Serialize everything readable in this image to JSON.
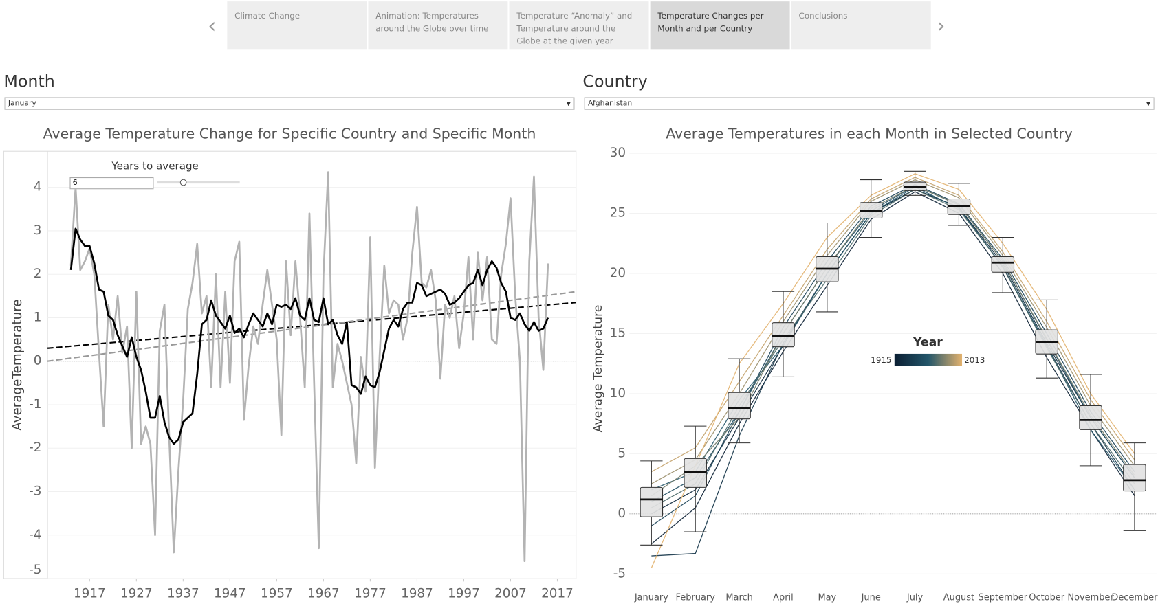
{
  "tabs": [
    "Climate Change",
    "Animation: Temperatures around the Globe over time",
    "Temperature “Anomaly” and Temperature around the Globe at the given year",
    "Temperature Changes per Month and per Country",
    "Conclusions"
  ],
  "selected_tab": 3,
  "filters": [
    {
      "label": "Month",
      "value": "January"
    },
    {
      "label": "Country",
      "value": "Afghanistan"
    }
  ],
  "chart_data": [
    {
      "type": "line",
      "title": "Average Temperature Change for Specific Country and Specific Month",
      "y_label": "AverageTemperature",
      "control": {
        "label": "Years to average",
        "value": 6
      },
      "x": [
        1913,
        1914,
        1915,
        1916,
        1917,
        1918,
        1919,
        1920,
        1921,
        1922,
        1923,
        1924,
        1925,
        1926,
        1927,
        1928,
        1929,
        1930,
        1931,
        1932,
        1933,
        1934,
        1935,
        1936,
        1937,
        1938,
        1939,
        1940,
        1941,
        1942,
        1943,
        1944,
        1945,
        1946,
        1947,
        1948,
        1949,
        1950,
        1951,
        1952,
        1953,
        1954,
        1955,
        1956,
        1957,
        1958,
        1959,
        1960,
        1961,
        1962,
        1963,
        1964,
        1965,
        1966,
        1967,
        1968,
        1969,
        1970,
        1971,
        1972,
        1973,
        1974,
        1975,
        1976,
        1977,
        1978,
        1979,
        1980,
        1981,
        1982,
        1983,
        1984,
        1985,
        1986,
        1987,
        1988,
        1989,
        1990,
        1991,
        1992,
        1993,
        1994,
        1995,
        1996,
        1997,
        1998,
        1999,
        2000,
        2001,
        2002,
        2003,
        2004,
        2005,
        2006,
        2007,
        2008,
        2009,
        2010,
        2011,
        2012,
        2013,
        2014,
        2015
      ],
      "series": [
        {
          "color": "#b3b3b3",
          "values": [
            2.2,
            4.0,
            2.1,
            2.3,
            2.6,
            2.0,
            0.2,
            -1.5,
            1.3,
            0.5,
            1.5,
            0.2,
            0.8,
            -2.0,
            1.6,
            -1.9,
            -1.5,
            -1.9,
            -4.0,
            0.7,
            1.3,
            -1.7,
            -4.4,
            -2.5,
            -0.9,
            1.2,
            1.8,
            2.7,
            1.1,
            1.5,
            -0.6,
            2.0,
            -0.6,
            1.6,
            -0.5,
            2.3,
            2.75,
            -1.35,
            -0.1,
            0.8,
            0.4,
            1.3,
            2.1,
            1.3,
            0.5,
            -1.7,
            2.3,
            0.6,
            2.3,
            1.0,
            -0.6,
            3.4,
            -0.5,
            -4.3,
            2.0,
            4.35,
            -0.6,
            0.4,
            0.0,
            -0.5,
            -1.0,
            -2.35,
            0.1,
            -0.7,
            2.85,
            -2.45,
            0.1,
            2.2,
            1.1,
            1.4,
            1.3,
            0.5,
            1.0,
            2.5,
            3.55,
            1.8,
            1.7,
            2.1,
            1.4,
            -0.4,
            1.3,
            1.0,
            1.5,
            0.3,
            1.1,
            2.4,
            0.5,
            2.5,
            1.4,
            2.4,
            0.5,
            0.4,
            2.0,
            2.7,
            3.75,
            1.5,
            0.0,
            -4.6,
            2.3,
            4.25,
            1.0,
            -0.2,
            2.25
          ]
        },
        {
          "color": "#000000",
          "values": [
            2.1,
            3.05,
            2.8,
            2.65,
            2.65,
            2.25,
            1.65,
            1.6,
            1.05,
            0.95,
            0.6,
            0.35,
            0.1,
            0.55,
            0.1,
            -0.2,
            -0.7,
            -1.3,
            -1.3,
            -0.8,
            -1.4,
            -1.75,
            -1.9,
            -1.8,
            -1.4,
            -1.3,
            -1.2,
            -0.3,
            0.85,
            0.95,
            1.4,
            1.05,
            0.9,
            0.75,
            1.05,
            0.65,
            0.75,
            0.55,
            0.85,
            1.1,
            0.95,
            0.8,
            1.1,
            0.85,
            1.3,
            1.25,
            1.3,
            1.2,
            1.45,
            1.05,
            0.95,
            1.45,
            0.95,
            0.9,
            1.45,
            0.85,
            0.95,
            0.6,
            0.4,
            0.9,
            -0.55,
            -0.6,
            -0.75,
            -0.35,
            -0.55,
            -0.6,
            -0.25,
            0.25,
            0.75,
            0.95,
            0.8,
            1.2,
            1.35,
            1.35,
            1.8,
            1.75,
            1.5,
            1.55,
            1.6,
            1.65,
            1.55,
            1.3,
            1.35,
            1.45,
            1.6,
            1.75,
            1.8,
            2.1,
            1.75,
            2.1,
            2.3,
            2.15,
            1.8,
            1.6,
            1.0,
            0.95,
            1.1,
            0.85,
            0.7,
            0.9,
            0.7,
            0.75,
            1.0
          ]
        }
      ],
      "trend_lines": [
        {
          "color": "#000000",
          "x": [
            1908,
            2021
          ],
          "values": [
            0.3,
            1.35
          ]
        },
        {
          "color": "#999999",
          "x": [
            1908,
            2021
          ],
          "values": [
            0.0,
            1.6
          ]
        }
      ],
      "xlim": [
        1908,
        2021
      ],
      "xticks": [
        1917,
        1927,
        1937,
        1947,
        1957,
        1967,
        1977,
        1987,
        1997,
        2007,
        2017
      ],
      "ylim": [
        -5,
        4.83
      ],
      "yticks": [
        -5,
        -4,
        -3,
        -2,
        -1,
        0,
        1,
        2,
        3,
        4
      ],
      "grid": true
    },
    {
      "type": "box",
      "title": "Average Temperatures in each Month in Selected Country",
      "y_label": "Average Temperature",
      "categories": [
        "January",
        "February",
        "March",
        "April",
        "May",
        "June",
        "July",
        "August",
        "September",
        "October",
        "November",
        "December"
      ],
      "boxes": {
        "whisker_low": [
          -2.6,
          -1.5,
          5.9,
          11.4,
          16.8,
          23.0,
          26.5,
          24.0,
          18.4,
          11.3,
          4.0,
          -1.4
        ],
        "q1": [
          -0.25,
          2.2,
          7.9,
          13.9,
          19.3,
          24.6,
          26.9,
          24.9,
          20.1,
          13.3,
          7.0,
          1.9
        ],
        "median": [
          1.2,
          3.5,
          8.8,
          14.8,
          20.4,
          25.2,
          27.2,
          25.6,
          20.9,
          14.3,
          7.8,
          2.8
        ],
        "q3": [
          2.2,
          4.6,
          10.1,
          15.9,
          21.4,
          25.9,
          27.6,
          26.2,
          21.4,
          15.3,
          9.0,
          4.1
        ],
        "whisker_high": [
          4.4,
          7.3,
          12.9,
          18.5,
          24.2,
          27.8,
          28.5,
          27.5,
          23.0,
          17.8,
          11.6,
          5.9
        ]
      },
      "lines": [
        {
          "year": 1915,
          "values": [
            -2.5,
            0.5,
            7.5,
            13.5,
            19.0,
            24.5,
            26.8,
            25.0,
            20.0,
            13.0,
            7.0,
            1.5
          ]
        },
        {
          "year": 1925,
          "values": [
            0.0,
            2.0,
            8.0,
            14.0,
            20.0,
            25.0,
            27.0,
            25.5,
            20.8,
            14.2,
            8.0,
            3.0
          ]
        },
        {
          "year": 1935,
          "values": [
            -3.5,
            -3.3,
            6.5,
            14.2,
            20.0,
            25.0,
            27.0,
            25.5,
            20.5,
            14.0,
            7.5,
            2.0
          ]
        },
        {
          "year": 1945,
          "values": [
            -1.0,
            1.5,
            8.5,
            15.5,
            21.0,
            25.6,
            27.4,
            25.8,
            21.2,
            15.0,
            8.5,
            3.5
          ]
        },
        {
          "year": 1955,
          "values": [
            1.0,
            3.0,
            8.5,
            15.0,
            20.5,
            25.2,
            27.3,
            25.7,
            21.0,
            14.5,
            8.0,
            3.0
          ]
        },
        {
          "year": 1965,
          "values": [
            2.0,
            3.5,
            9.5,
            14.0,
            20.0,
            25.0,
            27.2,
            25.4,
            20.6,
            14.0,
            7.0,
            2.0
          ]
        },
        {
          "year": 1975,
          "values": [
            0.5,
            2.5,
            9.0,
            14.5,
            19.5,
            24.8,
            27.0,
            25.3,
            20.6,
            13.8,
            7.5,
            2.5
          ]
        },
        {
          "year": 1985,
          "values": [
            1.5,
            4.0,
            8.0,
            15.0,
            20.5,
            25.4,
            27.3,
            25.7,
            21.0,
            14.6,
            8.2,
            3.2
          ]
        },
        {
          "year": 1995,
          "values": [
            2.5,
            4.5,
            10.0,
            16.0,
            21.5,
            26.0,
            27.8,
            26.3,
            21.5,
            15.5,
            9.0,
            4.0
          ]
        },
        {
          "year": 2005,
          "values": [
            3.5,
            5.5,
            11.0,
            16.5,
            22.0,
            26.2,
            28.0,
            26.5,
            21.8,
            16.0,
            9.5,
            4.5
          ]
        },
        {
          "year": 2013,
          "values": [
            -4.5,
            4.0,
            12.5,
            17.5,
            23.0,
            26.5,
            28.3,
            27.0,
            22.5,
            17.0,
            10.0,
            5.0
          ]
        }
      ],
      "colorscale": {
        "title": "Year",
        "min": 1915,
        "max": 2013,
        "colors": [
          "#0b1f33",
          "#23566a",
          "#e3b26e"
        ]
      },
      "ylim": [
        -6,
        30.1
      ],
      "yticks": [
        -5,
        0,
        5,
        10,
        15,
        20,
        25,
        30
      ],
      "grid": true
    }
  ]
}
